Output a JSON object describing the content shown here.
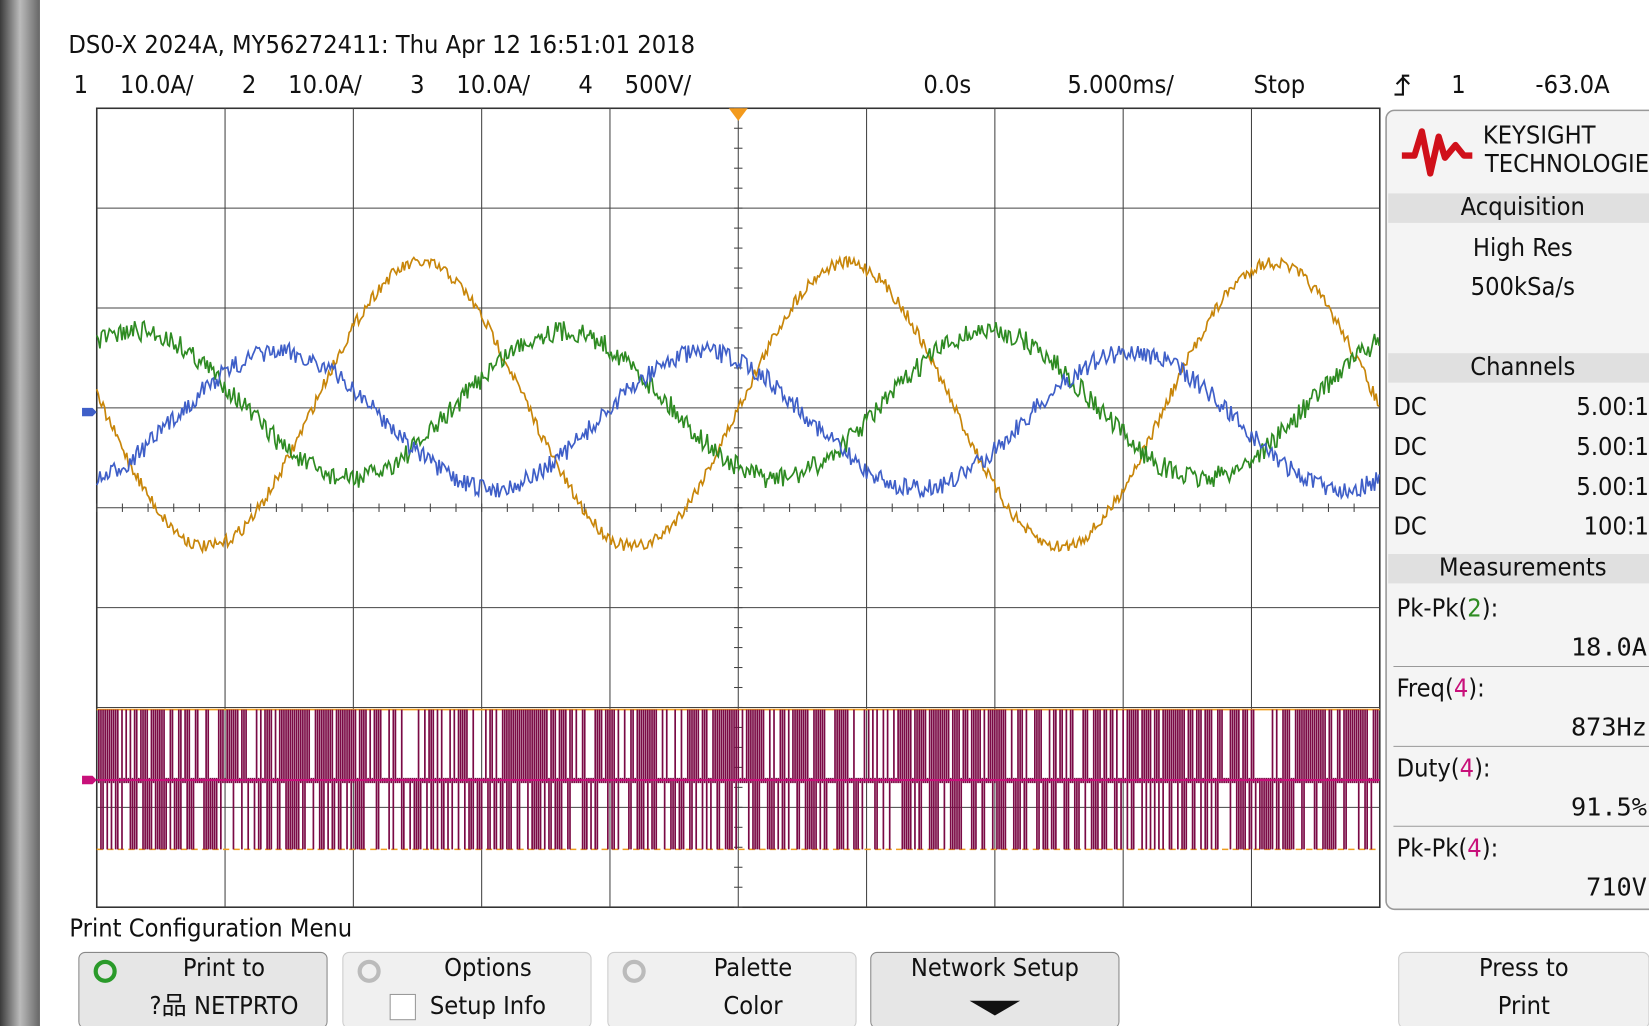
{
  "header": {
    "title": "DS0-X 2024A, MY56272411: Thu Apr 12 16:51:01 2018",
    "channels": [
      {
        "number": "1",
        "scale": "10.0A/"
      },
      {
        "number": "2",
        "scale": "10.0A/"
      },
      {
        "number": "3",
        "scale": "10.0A/"
      },
      {
        "number": "4",
        "scale": "500V/"
      }
    ],
    "time_offset": "0.0s",
    "time_scale": "5.000ms/",
    "run_state": "Stop",
    "trigger_source": "1",
    "trigger_level": "-63.0A"
  },
  "side_panel": {
    "brand": "KEYSIGHT",
    "brand_sub": "TECHNOLOGIES",
    "acquisition": {
      "title": "Acquisition",
      "mode": "High Res",
      "rate": "500kSa/s"
    },
    "channels": {
      "title": "Channels",
      "rows": [
        {
          "coupling": "DC",
          "probe": "5.00:1"
        },
        {
          "coupling": "DC",
          "probe": "5.00:1"
        },
        {
          "coupling": "DC",
          "probe": "5.00:1"
        },
        {
          "coupling": "DC",
          "probe": "100:1"
        }
      ]
    },
    "measurements": {
      "title": "Measurements",
      "items": [
        {
          "prefix": "Pk-Pk(",
          "channel": "2",
          "suffix": "):",
          "value": "18.0A"
        },
        {
          "prefix": "Freq(",
          "channel": "4",
          "suffix": "):",
          "value": "873Hz"
        },
        {
          "prefix": "Duty(",
          "channel": "4",
          "suffix": "):",
          "value": "91.5%"
        },
        {
          "prefix": "Pk-Pk(",
          "channel": "4",
          "suffix": "):",
          "value": "710V"
        }
      ]
    }
  },
  "footer": {
    "menu_title": "Print Configuration Menu",
    "softkeys": [
      {
        "line1": "Print to",
        "line2": "?品 NETPRTO"
      },
      {
        "line1": "Options",
        "line2": "Setup Info"
      },
      {
        "line1": "Palette",
        "line2": "Color"
      },
      {
        "line1": "Network Setup",
        "line2": ""
      },
      {
        "line1": "Press to",
        "line2": "Print"
      }
    ]
  }
}
